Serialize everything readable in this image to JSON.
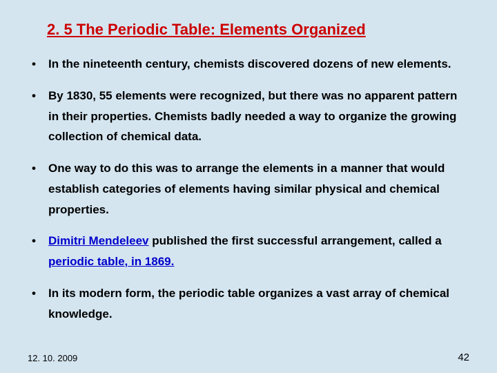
{
  "background_color": "#d4e5f0",
  "title_color": "#cc0000",
  "link_color": "#0000cc",
  "text_color": "#000000",
  "title": "2. 5 The Periodic Table: Elements Organized",
  "bullets": {
    "b0": "In the nineteenth century, chemists discovered dozens of new elements.",
    "b1": "By 1830, 55 elements were recognized, but there was no apparent pattern in their properties. Chemists badly needed a way to organize the growing collection of chemical data.",
    "b2": "One way to do this was to arrange the elements in a manner that would establish categories of elements having similar physical and chemical properties.",
    "b3_pre": "",
    "b3_link1": "Dimitri Mendeleev",
    "b3_mid": " published the first successful arrangement, called a ",
    "b3_link2": "periodic table,",
    "b3_link3": " in 1869.",
    "b4": "In its modern form, the periodic table organizes a vast array of chemical knowledge."
  },
  "footer": {
    "date": "12. 10. 2009",
    "page": "42"
  }
}
